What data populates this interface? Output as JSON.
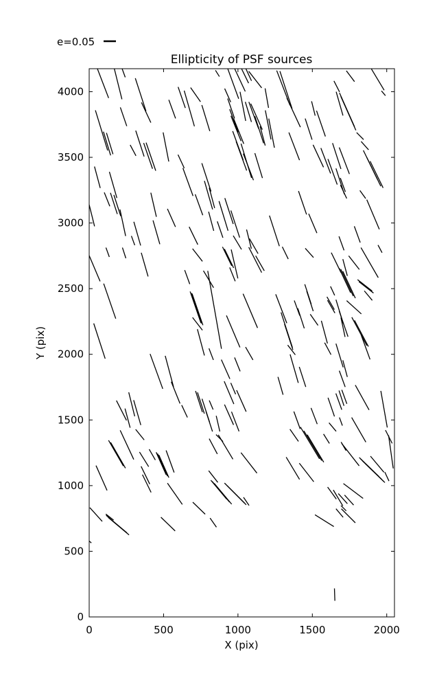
{
  "figure": {
    "background": "#ffffff",
    "line_color": "#000000"
  },
  "legend": {
    "label": "e=0.05",
    "sample_line": "short horizontal dash"
  },
  "chart_data": {
    "type": "scatter",
    "subtype": "whisker-quiver (PSF ellipticity sticks: each segment = source position, length ~ ellipticity e, orientation = position angle)",
    "title": "Ellipticity of PSF sources",
    "xlabel": "X (pix)",
    "ylabel": "Y (pix)",
    "xlim": [
      0,
      2052
    ],
    "ylim": [
      0,
      4175
    ],
    "xticks": [
      0,
      500,
      1000,
      1500,
      2000
    ],
    "yticks": [
      0,
      500,
      1000,
      1500,
      2000,
      2500,
      3000,
      3500,
      4000
    ],
    "grid": false,
    "legend_position": "above-axes top-left",
    "whisker_reference_e": 0.05,
    "segments_format": [
      "x_pix",
      "y_pix",
      "ellipticity_e",
      "angle_deg_from_horizontal"
    ],
    "segments": [
      [
        92,
        4066,
        0.13,
        -69
      ],
      [
        194,
        4061,
        0.13,
        -76
      ],
      [
        231,
        4145,
        0.04,
        -70
      ],
      [
        346,
        3977,
        0.14,
        -72
      ],
      [
        383,
        3841,
        0.09,
        -65
      ],
      [
        622,
        3956,
        0.09,
        -71
      ],
      [
        673,
        3872,
        0.15,
        -74
      ],
      [
        715,
        3977,
        0.07,
        -55
      ],
      [
        784,
        3799,
        0.11,
        -73
      ],
      [
        558,
        3867,
        0.08,
        -70
      ],
      [
        83,
        3705,
        0.17,
        -73
      ],
      [
        231,
        3809,
        0.08,
        -71
      ],
      [
        120,
        3605,
        0.1,
        -73
      ],
      [
        138,
        3605,
        0.09,
        -73
      ],
      [
        341,
        3605,
        0.11,
        -72
      ],
      [
        415,
        3505,
        0.12,
        -71
      ],
      [
        396,
        3511,
        0.11,
        -71
      ],
      [
        295,
        3553,
        0.05,
        -62
      ],
      [
        516,
        3579,
        0.12,
        -79
      ],
      [
        664,
        3312,
        0.12,
        -70
      ],
      [
        788,
        3348,
        0.12,
        -72
      ],
      [
        802,
        3212,
        0.12,
        -74
      ],
      [
        738,
        3139,
        0.09,
        -70
      ],
      [
        618,
        3469,
        0.06,
        -65
      ],
      [
        55,
        3348,
        0.09,
        -75
      ],
      [
        161,
        3290,
        0.11,
        -74
      ],
      [
        166,
        3149,
        0.09,
        -72
      ],
      [
        189,
        3133,
        0.09,
        -72
      ],
      [
        14,
        3075,
        0.11,
        -76
      ],
      [
        120,
        3180,
        0.06,
        -68
      ],
      [
        226,
        3002,
        0.11,
        -78
      ],
      [
        323,
        2919,
        0.1,
        -74
      ],
      [
        295,
        2866,
        0.04,
        -70
      ],
      [
        433,
        3139,
        0.1,
        -77
      ],
      [
        452,
        2929,
        0.1,
        -74
      ],
      [
        553,
        3039,
        0.08,
        -66
      ],
      [
        701,
        2903,
        0.08,
        -64
      ],
      [
        862,
        4139,
        0.03,
        -58
      ],
      [
        968,
        4061,
        0.13,
        -70
      ],
      [
        1014,
        4087,
        0.1,
        -65
      ],
      [
        1046,
        4124,
        0.07,
        -64
      ],
      [
        1070,
        4134,
        0.06,
        -65
      ],
      [
        1116,
        4092,
        0.085,
        -52
      ],
      [
        1305,
        4029,
        0.15,
        -69
      ],
      [
        1323,
        4013,
        0.16,
        -72
      ],
      [
        1374,
        3841,
        0.13,
        -65
      ],
      [
        1194,
        3951,
        0.08,
        -80
      ],
      [
        931,
        3972,
        0.06,
        -66
      ],
      [
        954,
        3872,
        0.085,
        -71
      ],
      [
        973,
        3778,
        0.1,
        -70
      ],
      [
        987,
        3720,
        0.11,
        -68
      ],
      [
        1005,
        3699,
        0.11,
        -68
      ],
      [
        1000,
        3589,
        0.125,
        -70
      ],
      [
        1023,
        3510,
        0.125,
        -70
      ],
      [
        1056,
        3474,
        0.145,
        -73
      ],
      [
        1070,
        3427,
        0.115,
        -69
      ],
      [
        1033,
        3888,
        0.12,
        -79
      ],
      [
        1070,
        3846,
        0.085,
        -73
      ],
      [
        1106,
        3820,
        0.115,
        -70
      ],
      [
        1125,
        3810,
        0.115,
        -66
      ],
      [
        1143,
        3710,
        0.115,
        -72
      ],
      [
        1166,
        3663,
        0.08,
        -75
      ],
      [
        1203,
        3747,
        0.12,
        -79
      ],
      [
        1226,
        3684,
        0.12,
        -79
      ],
      [
        1139,
        3437,
        0.105,
        -73
      ],
      [
        1378,
        3584,
        0.12,
        -69
      ],
      [
        1475,
        3715,
        0.09,
        -72
      ],
      [
        1507,
        3872,
        0.06,
        -76
      ],
      [
        1558,
        3757,
        0.11,
        -71
      ],
      [
        1540,
        3510,
        0.1,
        -65
      ],
      [
        1590,
        3474,
        0.11,
        -69
      ],
      [
        1636,
        3390,
        0.11,
        -70
      ],
      [
        1664,
        3510,
        0.11,
        -72
      ],
      [
        1683,
        3909,
        0.1,
        -74
      ],
      [
        1664,
        4040,
        0.05,
        -63
      ],
      [
        1687,
        3317,
        0.11,
        -72
      ],
      [
        1434,
        3154,
        0.1,
        -71
      ],
      [
        825,
        3191,
        0.085,
        -75
      ],
      [
        903,
        3054,
        0.125,
        -73
      ],
      [
        940,
        3091,
        0.11,
        -72
      ],
      [
        820,
        3013,
        0.08,
        -75
      ],
      [
        880,
        2950,
        0.07,
        -71
      ],
      [
        982,
        2992,
        0.115,
        -72
      ],
      [
        996,
        2851,
        0.065,
        -59
      ],
      [
        1074,
        2877,
        0.08,
        -76
      ],
      [
        1106,
        2824,
        0.07,
        -60
      ],
      [
        1245,
        2940,
        0.13,
        -72
      ],
      [
        1503,
        2997,
        0.085,
        -67
      ],
      [
        963,
        2609,
        0.06,
        -68
      ],
      [
        28,
        2677,
        0.14,
        -67
      ],
      [
        138,
        2405,
        0.15,
        -71
      ],
      [
        69,
        2101,
        0.15,
        -72
      ],
      [
        124,
        2777,
        0.04,
        -70
      ],
      [
        235,
        2772,
        0.045,
        -72
      ],
      [
        373,
        2683,
        0.1,
        -74
      ],
      [
        728,
        2756,
        0.065,
        -52
      ],
      [
        659,
        2588,
        0.06,
        -70
      ],
      [
        802,
        2572,
        0.08,
        -59
      ],
      [
        715,
        2358,
        0.135,
        -71
      ],
      [
        728,
        2342,
        0.135,
        -71
      ],
      [
        722,
        2350,
        0.13,
        -71
      ],
      [
        728,
        2232,
        0.065,
        -52
      ],
      [
        751,
        2091,
        0.11,
        -75
      ],
      [
        820,
        2001,
        0.05,
        -69
      ],
      [
        452,
        1870,
        0.15,
        -70
      ],
      [
        539,
        1870,
        0.13,
        -75
      ],
      [
        581,
        1708,
        0.095,
        -68
      ],
      [
        641,
        1566,
        0.055,
        -65
      ],
      [
        738,
        1640,
        0.09,
        -72
      ],
      [
        751,
        1629,
        0.09,
        -72
      ],
      [
        784,
        1572,
        0.1,
        -72
      ],
      [
        807,
        1488,
        0.085,
        -72
      ],
      [
        217,
        1572,
        0.09,
        -63
      ],
      [
        258,
        1514,
        0.08,
        -75
      ],
      [
        323,
        1556,
        0.105,
        -74
      ],
      [
        286,
        1619,
        0.1,
        -76
      ],
      [
        843,
        2339,
        0.32,
        -80
      ],
      [
        927,
        2746,
        0.085,
        -64
      ],
      [
        940,
        2730,
        0.085,
        -64
      ],
      [
        977,
        2688,
        0.12,
        -77
      ],
      [
        1116,
        2719,
        0.115,
        -63
      ],
      [
        1148,
        2693,
        0.07,
        -60
      ],
      [
        1318,
        2772,
        0.055,
        -64
      ],
      [
        1480,
        2772,
        0.05,
        -48
      ],
      [
        1660,
        2698,
        0.09,
        -64
      ],
      [
        1720,
        2661,
        0.07,
        -75
      ],
      [
        1083,
        2331,
        0.15,
        -67
      ],
      [
        968,
        2174,
        0.14,
        -67
      ],
      [
        1291,
        2347,
        0.125,
        -69
      ],
      [
        1328,
        2185,
        0.15,
        -72
      ],
      [
        1341,
        2132,
        0.11,
        -72
      ],
      [
        1397,
        2352,
        0.065,
        -70
      ],
      [
        1424,
        2274,
        0.085,
        -72
      ],
      [
        1471,
        2457,
        0.085,
        -72
      ],
      [
        1484,
        2405,
        0.085,
        -72
      ],
      [
        1512,
        2263,
        0.055,
        -55
      ],
      [
        1623,
        2389,
        0.06,
        -60
      ],
      [
        1627,
        2363,
        0.06,
        -60
      ],
      [
        1636,
        2483,
        0.04,
        -65
      ],
      [
        1683,
        2326,
        0.1,
        -73
      ],
      [
        1706,
        2206,
        0.08,
        -78
      ],
      [
        1581,
        2169,
        0.095,
        -75
      ],
      [
        1604,
        2043,
        0.055,
        -62
      ],
      [
        1683,
        1991,
        0.1,
        -73
      ],
      [
        1720,
        1891,
        0.07,
        -75
      ],
      [
        1360,
        2033,
        0.05,
        -52
      ],
      [
        1378,
        1891,
        0.12,
        -74
      ],
      [
        1434,
        1828,
        0.085,
        -72
      ],
      [
        1286,
        1760,
        0.075,
        -74
      ],
      [
        996,
        1923,
        0.06,
        -68
      ],
      [
        917,
        1886,
        0.085,
        -66
      ],
      [
        940,
        1708,
        0.1,
        -67
      ],
      [
        968,
        1739,
        0.05,
        -67
      ],
      [
        1023,
        1645,
        0.095,
        -66
      ],
      [
        940,
        1540,
        0.09,
        -66
      ],
      [
        982,
        1488,
        0.085,
        -69
      ],
      [
        866,
        1472,
        0.065,
        -77
      ],
      [
        820,
        1614,
        0.04,
        -67
      ],
      [
        1397,
        1498,
        0.075,
        -70
      ],
      [
        1512,
        1530,
        0.07,
        -69
      ],
      [
        1627,
        1598,
        0.08,
        -71
      ],
      [
        1678,
        1640,
        0.07,
        -70
      ],
      [
        1715,
        1676,
        0.06,
        -70
      ],
      [
        1636,
        1446,
        0.045,
        -50
      ],
      [
        1076,
        2006,
        0.06,
        -60
      ],
      [
        180,
        1247,
        0.12,
        -60
      ],
      [
        194,
        1231,
        0.12,
        -60
      ],
      [
        254,
        1310,
        0.13,
        -65
      ],
      [
        341,
        1388,
        0.055,
        -51
      ],
      [
        83,
        1058,
        0.11,
        -66
      ],
      [
        369,
        1200,
        0.07,
        -58
      ],
      [
        378,
        1079,
        0.08,
        -64
      ],
      [
        387,
        1016,
        0.08,
        -64
      ],
      [
        424,
        1236,
        0.05,
        -60
      ],
      [
        484,
        1168,
        0.1,
        -66
      ],
      [
        493,
        1158,
        0.1,
        -66
      ],
      [
        502,
        1147,
        0.1,
        -66
      ],
      [
        544,
        1184,
        0.095,
        -70
      ],
      [
        576,
        938,
        0.105,
        -55
      ],
      [
        738,
        828,
        0.07,
        -44
      ],
      [
        834,
        718,
        0.045,
        -55
      ],
      [
        46,
        780,
        0.075,
        -48
      ],
      [
        138,
        760,
        0.04,
        -38
      ],
      [
        198,
        691,
        0.11,
        -40
      ],
      [
        184,
        707,
        0.11,
        -40
      ],
      [
        530,
        707,
        0.08,
        -44
      ],
      [
        2,
        576,
        0.02,
        -40
      ],
      [
        834,
        1299,
        0.07,
        -62
      ],
      [
        917,
        1294,
        0.115,
        -59
      ],
      [
        876,
        1362,
        0.04,
        -45
      ],
      [
        1074,
        1173,
        0.105,
        -52
      ],
      [
        834,
        1069,
        0.06,
        -52
      ],
      [
        885,
        953,
        0.11,
        -50
      ],
      [
        899,
        938,
        0.11,
        -50
      ],
      [
        871,
        969,
        0.1,
        -50
      ],
      [
        977,
        943,
        0.115,
        -45
      ],
      [
        991,
        927,
        0.11,
        -45
      ],
      [
        1056,
        880,
        0.04,
        -56
      ],
      [
        1369,
        1132,
        0.105,
        -59
      ],
      [
        1461,
        1100,
        0.095,
        -52
      ],
      [
        1378,
        1383,
        0.06,
        -55
      ],
      [
        1484,
        1325,
        0.15,
        -59
      ],
      [
        1503,
        1304,
        0.14,
        -59
      ],
      [
        1521,
        1283,
        0.13,
        -59
      ],
      [
        1595,
        1357,
        0.045,
        -58
      ],
      [
        1710,
        1299,
        0.04,
        -60
      ],
      [
        1632,
        943,
        0.06,
        -54
      ],
      [
        1673,
        906,
        0.075,
        -59
      ],
      [
        1683,
        791,
        0.045,
        -50
      ],
      [
        1581,
        733,
        0.09,
        -32
      ],
      [
        1650,
        170,
        0.05,
        -88
      ],
      [
        1756,
        4118,
        0.055,
        -53
      ],
      [
        1940,
        4092,
        0.1,
        -59
      ],
      [
        1733,
        3862,
        0.15,
        -66
      ],
      [
        1742,
        3835,
        0.15,
        -66
      ],
      [
        1978,
        3988,
        0.025,
        -50
      ],
      [
        1821,
        3662,
        0.04,
        -45
      ],
      [
        1853,
        3589,
        0.045,
        -48
      ],
      [
        1890,
        3443,
        0.13,
        -64
      ],
      [
        1913,
        3390,
        0.13,
        -64
      ],
      [
        1932,
        3369,
        0.12,
        -64
      ],
      [
        1715,
        3474,
        0.115,
        -69
      ],
      [
        1705,
        3290,
        0.06,
        -70
      ],
      [
        1710,
        3238,
        0.06,
        -65
      ],
      [
        1839,
        3217,
        0.04,
        -54
      ],
      [
        1908,
        3065,
        0.13,
        -67
      ],
      [
        1802,
        2913,
        0.07,
        -70
      ],
      [
        1696,
        2845,
        0.06,
        -70
      ],
      [
        1955,
        2803,
        0.035,
        -62
      ],
      [
        1885,
        2698,
        0.14,
        -60
      ],
      [
        1780,
        2698,
        0.07,
        -52
      ],
      [
        1733,
        2546,
        0.12,
        -65
      ],
      [
        1747,
        2530,
        0.12,
        -65
      ],
      [
        1719,
        2562,
        0.11,
        -65
      ],
      [
        1853,
        2525,
        0.075,
        -38
      ],
      [
        1862,
        2510,
        0.075,
        -38
      ],
      [
        1876,
        2447,
        0.05,
        -50
      ],
      [
        1780,
        2358,
        0.08,
        -42
      ],
      [
        1710,
        2232,
        0.11,
        -71
      ],
      [
        1816,
        2174,
        0.13,
        -62
      ],
      [
        1830,
        2159,
        0.12,
        -62
      ],
      [
        1858,
        2054,
        0.105,
        -70
      ],
      [
        1701,
        1813,
        0.07,
        -70
      ],
      [
        1835,
        1671,
        0.115,
        -61
      ],
      [
        1982,
        1582,
        0.15,
        -80
      ],
      [
        1696,
        1666,
        0.065,
        -72
      ],
      [
        1692,
        1488,
        0.035,
        -70
      ],
      [
        1812,
        1425,
        0.115,
        -60
      ],
      [
        2014,
        1372,
        0.06,
        -63
      ],
      [
        1756,
        1236,
        0.115,
        -52
      ],
      [
        1895,
        1126,
        0.12,
        -44
      ],
      [
        1908,
        1110,
        0.12,
        -44
      ],
      [
        1881,
        1142,
        0.11,
        -44
      ],
      [
        1922,
        1095,
        0.11,
        -44
      ],
      [
        1936,
        1163,
        0.085,
        -50
      ],
      [
        2001,
        1069,
        0.04,
        -65
      ],
      [
        2028,
        1257,
        0.135,
        -82
      ],
      [
        1775,
        959,
        0.1,
        -37
      ],
      [
        1705,
        901,
        0.055,
        -48
      ],
      [
        1747,
        890,
        0.055,
        -48
      ],
      [
        1710,
        828,
        0.03,
        -45
      ],
      [
        1742,
        770,
        0.08,
        -45
      ]
    ]
  }
}
